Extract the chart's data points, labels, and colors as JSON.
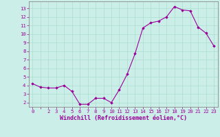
{
  "x": [
    0,
    1,
    2,
    3,
    4,
    5,
    6,
    7,
    8,
    9,
    10,
    11,
    12,
    13,
    14,
    15,
    16,
    17,
    18,
    19,
    20,
    21,
    22,
    23
  ],
  "y": [
    4.2,
    3.8,
    3.7,
    3.7,
    4.0,
    3.3,
    1.8,
    1.8,
    2.5,
    2.5,
    2.0,
    3.5,
    5.3,
    7.7,
    10.7,
    11.3,
    11.5,
    12.0,
    13.2,
    12.8,
    12.7,
    10.8,
    10.1,
    8.6
  ],
  "line_color": "#990099",
  "marker": "D",
  "markersize": 1.8,
  "linewidth": 0.8,
  "xlabel": "Windchill (Refroidissement éolien,°C)",
  "xlabel_fontsize": 6.0,
  "ylim": [
    1.5,
    13.8
  ],
  "xlim": [
    -0.5,
    23.5
  ],
  "yticks": [
    2,
    3,
    4,
    5,
    6,
    7,
    8,
    9,
    10,
    11,
    12,
    13
  ],
  "xticks": [
    0,
    1,
    2,
    3,
    4,
    5,
    6,
    7,
    8,
    9,
    10,
    11,
    12,
    13,
    14,
    15,
    16,
    17,
    18,
    19,
    20,
    21,
    22,
    23
  ],
  "xtick_labels": [
    "0",
    "",
    "2",
    "3",
    "4",
    "5",
    "6",
    "7",
    "8",
    "9",
    "10",
    "11",
    "12",
    "13",
    "14",
    "15",
    "16",
    "17",
    "18",
    "19",
    "20",
    "21",
    "22",
    "23"
  ],
  "grid_color": "#aaddcc",
  "background_color": "#cceee8",
  "tick_color": "#990099",
  "tick_fontsize": 5.2,
  "axis_color": "#990099",
  "spine_color": "#888888"
}
